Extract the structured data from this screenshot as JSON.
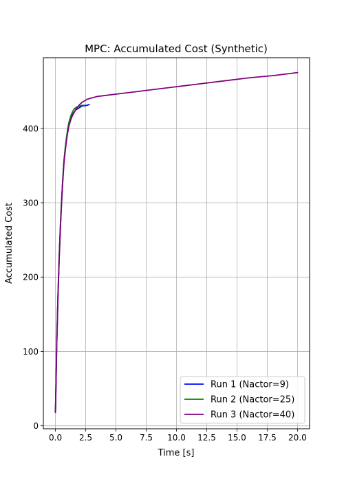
{
  "chart_data": {
    "type": "line",
    "title": "MPC: Accumulated Cost (Synthetic)",
    "xlabel": "Time [s]",
    "ylabel": "Accumulated Cost",
    "xlim": [
      -1.0,
      21.0
    ],
    "ylim": [
      -4,
      495
    ],
    "xticks": [
      0.0,
      2.5,
      5.0,
      7.5,
      10.0,
      12.5,
      15.0,
      17.5,
      20.0
    ],
    "xtick_labels": [
      "0.0",
      "2.5",
      "5.0",
      "7.5",
      "10.0",
      "12.5",
      "15.0",
      "17.5",
      "20.0"
    ],
    "yticks": [
      0,
      100,
      200,
      300,
      400
    ],
    "ytick_labels": [
      "0",
      "100",
      "200",
      "300",
      "400"
    ],
    "grid": true,
    "legend_position": "lower-right",
    "series": [
      {
        "name": "Run 1 (Nactor=9)",
        "color": "#0000ff",
        "x": [
          0.0,
          0.05,
          0.1,
          0.2,
          0.3,
          0.4,
          0.5,
          0.6,
          0.7,
          0.8,
          0.9,
          1.0,
          1.1,
          1.2,
          1.3,
          1.4,
          1.5,
          1.6,
          1.7,
          1.8,
          1.9,
          2.0,
          2.1,
          2.2,
          2.4,
          2.6,
          2.8
        ],
        "y": [
          18,
          60,
          105,
          170,
          222,
          265,
          300,
          330,
          355,
          371,
          385,
          396,
          405,
          410,
          414,
          418,
          421,
          423,
          425,
          426,
          427,
          428,
          429,
          430,
          430.5,
          431,
          432
        ]
      },
      {
        "name": "Run 2 (Nactor=25)",
        "color": "#008000",
        "x": [
          0.0,
          0.05,
          0.1,
          0.2,
          0.3,
          0.4,
          0.5,
          0.6,
          0.7,
          0.8,
          0.9,
          1.0,
          1.1,
          1.2,
          1.3,
          1.4,
          1.5,
          1.6,
          1.7,
          1.8,
          1.9,
          2.0,
          2.1,
          2.2,
          2.3,
          2.4
        ],
        "y": [
          18,
          62,
          107,
          172,
          224,
          267,
          302,
          331,
          356,
          372,
          386,
          398,
          407,
          413,
          418,
          422,
          425,
          427,
          428,
          429,
          429.5,
          430,
          430.5,
          431,
          431,
          431
        ]
      },
      {
        "name": "Run 3 (Nactor=40)",
        "color": "#800080",
        "x": [
          0.0,
          0.05,
          0.1,
          0.2,
          0.3,
          0.4,
          0.5,
          0.6,
          0.7,
          0.8,
          0.9,
          1.0,
          1.1,
          1.2,
          1.3,
          1.4,
          1.5,
          1.6,
          1.7,
          1.8,
          1.9,
          2.0,
          2.2,
          2.4,
          2.6,
          2.8,
          3.0,
          3.5,
          4.0,
          5.0,
          6.0,
          8.0,
          10.0,
          12.0,
          14.0,
          16.0,
          18.0,
          20.0
        ],
        "y": [
          18,
          58,
          103,
          168,
          220,
          262,
          297,
          327,
          352,
          368,
          382,
          393,
          402,
          408,
          413,
          417,
          420,
          423,
          426,
          428,
          430,
          432,
          435,
          437,
          439,
          440,
          441,
          443,
          444,
          446,
          448,
          452,
          456,
          460,
          464,
          468,
          471,
          475
        ]
      }
    ]
  }
}
